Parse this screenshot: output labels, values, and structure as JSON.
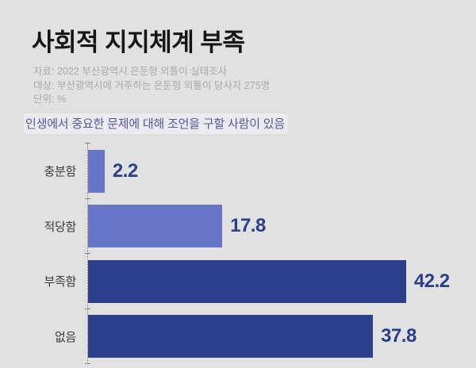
{
  "header": {
    "title": "사회적 지지체계 부족",
    "meta": [
      "자료: 2022 부산광역시 은둔형 외톨이 실태조사",
      "대상: 부산광역시에 거주하는 은둔형 외톨이 당사자 275명",
      "단위: %"
    ]
  },
  "chart_data": {
    "type": "bar",
    "orientation": "horizontal",
    "title": "사회적 지지체계 부족",
    "subtitle": "인생에서 중요한 문제에 대해 조언을 구할 사람이 있음",
    "categories": [
      "충분함",
      "적당함",
      "부족함",
      "없음"
    ],
    "values": [
      2.2,
      17.8,
      42.2,
      37.8
    ],
    "unit": "%",
    "xlim": [
      0,
      45
    ],
    "grid": false,
    "legend": "none",
    "value_labels_shown": true,
    "bar_colors": [
      "#6874c6",
      "#6874c6",
      "#2c3f8c",
      "#2c3f8c"
    ],
    "value_label_color": "#2b3e8c",
    "axis_line_color": "#8d8073",
    "background_color": "#e1e1e1"
  }
}
